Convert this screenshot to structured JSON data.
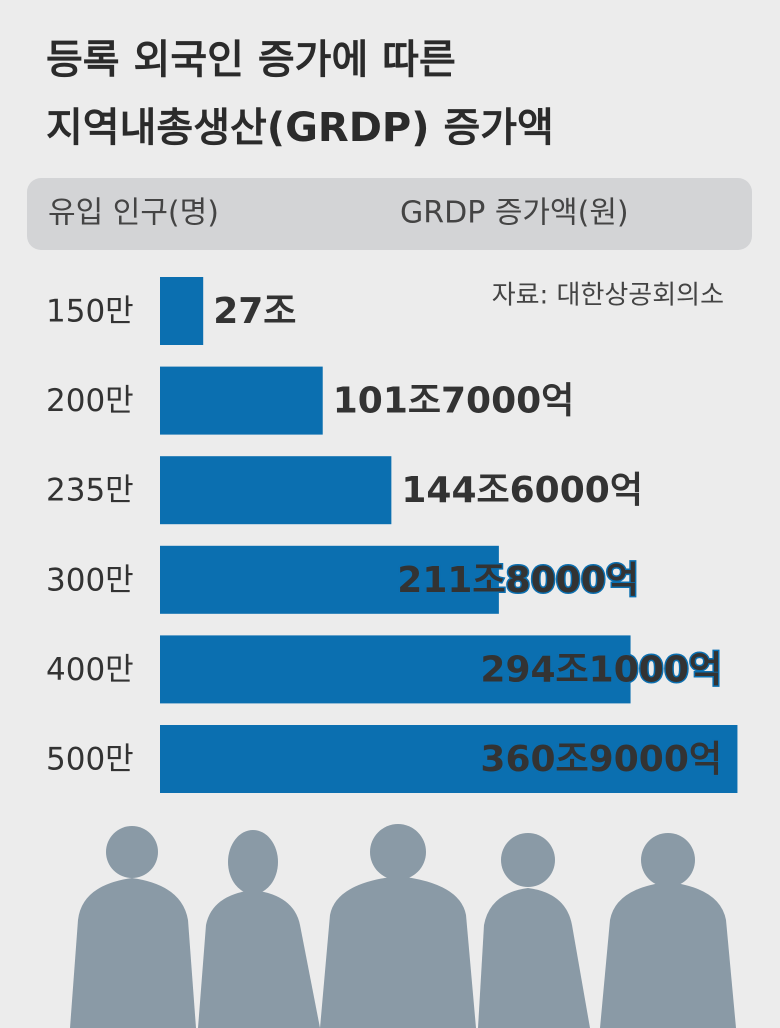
{
  "chart_data": {
    "type": "bar",
    "orientation": "horizontal",
    "title": [
      "등록 외국인 증가에 따른",
      "지역내총생산(GRDP) 증가액"
    ],
    "category_header": "유입 인구(명)",
    "value_header": "GRDP 증가액(원)",
    "source": "자료: 대한상공회의소",
    "categories": [
      "150만",
      "200만",
      "235만",
      "300만",
      "400만",
      "500만"
    ],
    "values": [
      27,
      101.7,
      144.6,
      211.8,
      294.1,
      360.9
    ],
    "value_labels": [
      "27조",
      "101조7000억",
      "144조6000억",
      "211조8000억",
      "294조1000억",
      "360조9000억"
    ],
    "color": "#0b6fb0"
  }
}
